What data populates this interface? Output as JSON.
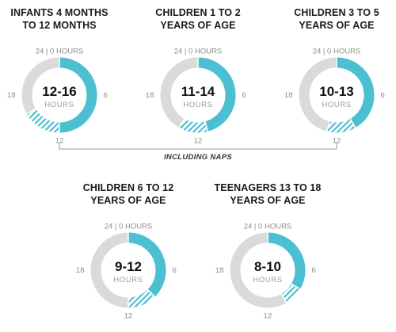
{
  "chart_data": [
    {
      "type": "donut",
      "title": [
        "INFANTS 4 MONTHS",
        "TO 12 MONTHS"
      ],
      "range_label": "12-16",
      "unit": "HOURS",
      "base_hours": 12,
      "naps_hours": 4,
      "ticks": {
        "top": "24 | 0 HOURS",
        "right": "6",
        "bottom": "12",
        "left": "18"
      }
    },
    {
      "type": "donut",
      "title": [
        "CHILDREN 1 TO 2",
        "YEARS OF AGE"
      ],
      "range_label": "11-14",
      "unit": "HOURS",
      "base_hours": 11,
      "naps_hours": 3,
      "ticks": {
        "top": "24 | 0 HOURS",
        "right": "6",
        "bottom": "12",
        "left": "18"
      }
    },
    {
      "type": "donut",
      "title": [
        "CHILDREN 3 TO 5",
        "YEARS OF AGE"
      ],
      "range_label": "10-13",
      "unit": "HOURS",
      "base_hours": 10,
      "naps_hours": 3,
      "ticks": {
        "top": "24 | 0 HOURS",
        "right": "6",
        "bottom": "12",
        "left": "18"
      }
    },
    {
      "type": "donut",
      "title": [
        "CHILDREN 6 TO 12",
        "YEARS OF AGE"
      ],
      "range_label": "9-12",
      "unit": "HOURS",
      "base_hours": 9,
      "naps_hours": 3,
      "ticks": {
        "top": "24 | 0 HOURS",
        "right": "6",
        "bottom": "12",
        "left": "18"
      }
    },
    {
      "type": "donut",
      "title": [
        "TEENAGERS 13 TO 18",
        "YEARS OF AGE"
      ],
      "range_label": "8-10",
      "unit": "HOURS",
      "base_hours": 8,
      "naps_hours": 2,
      "ticks": {
        "top": "24 | 0 HOURS",
        "right": "6",
        "bottom": "12",
        "left": "18"
      }
    }
  ],
  "annotation": "INCLUDING NAPS",
  "colors": {
    "sleep": "#4dbfd3",
    "naps_stripe": "#4dbfd3",
    "track": "#dadada",
    "text": "#1a1a1a",
    "tick": "#8c8c8c"
  }
}
